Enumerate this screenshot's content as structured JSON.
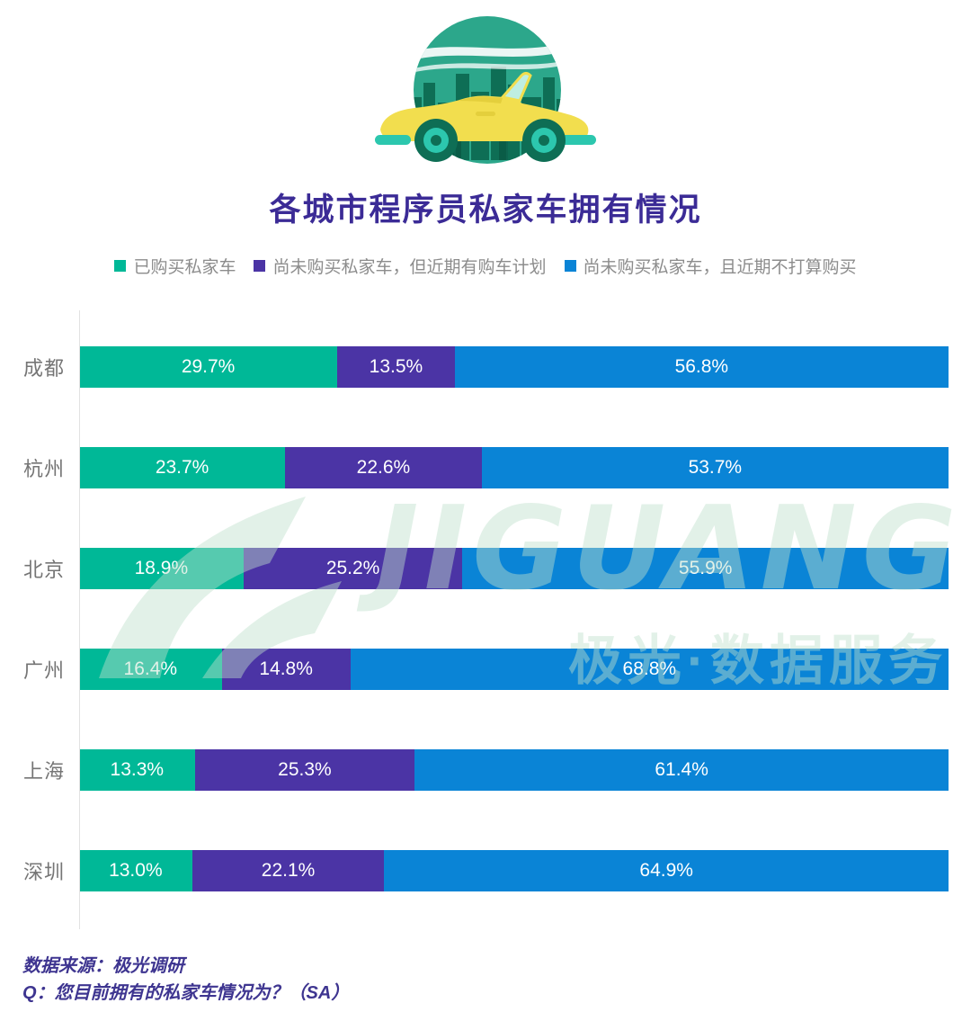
{
  "page": {
    "title": "各城市程序员私家车拥有情况",
    "source_note": "数据来源：极光调研",
    "question_note": "Q：您目前拥有的私家车情况为？（SA）",
    "watermark": {
      "brand": "JIGUANG",
      "caption": "极光·数据服务"
    }
  },
  "illustration": {
    "name": "yellow-convertible-car-city-badge"
  },
  "chart_data": {
    "type": "bar",
    "orientation": "horizontal-stacked",
    "unit": "%",
    "xlim": [
      0,
      100
    ],
    "grid": false,
    "legend_position": "top",
    "value_label_format": "{value}%",
    "categories": [
      "成都",
      "杭州",
      "北京",
      "广州",
      "上海",
      "深圳"
    ],
    "series": [
      {
        "name": "已购买私家车",
        "color": "#00B897",
        "values": [
          29.7,
          23.7,
          18.9,
          16.4,
          13.3,
          13.0
        ]
      },
      {
        "name": "尚未购买私家车，但近期有购车计划",
        "color": "#4B34A5",
        "values": [
          13.5,
          22.6,
          25.2,
          14.8,
          25.3,
          22.1
        ]
      },
      {
        "name": "尚未购买私家车，且近期不打算购买",
        "color": "#0A84D6",
        "values": [
          56.8,
          53.7,
          55.9,
          68.8,
          61.4,
          64.9
        ]
      }
    ]
  }
}
